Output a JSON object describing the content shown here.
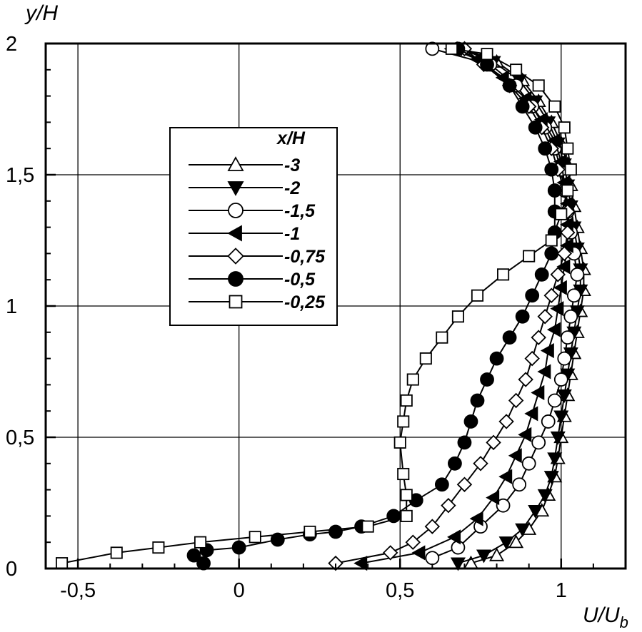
{
  "chart_data": {
    "type": "line",
    "xlabel": "U/U",
    "xlabel_sub": "b",
    "ylabel": "y/H",
    "xlim": [
      -0.6,
      1.2
    ],
    "ylim": [
      0,
      2
    ],
    "grid": true,
    "legend_title": "x/H",
    "legend_placement": "upper-left-center",
    "x_ticks": [
      -0.5,
      0,
      0.5,
      1
    ],
    "x_tick_labels": [
      "-0,5",
      "0",
      "0,5",
      "1"
    ],
    "y_ticks": [
      0,
      0.5,
      1,
      1.5,
      2
    ],
    "y_tick_labels": [
      "0",
      "0,5",
      "1",
      "1,5",
      "2"
    ],
    "series": [
      {
        "name": "-3",
        "marker": "triangle-up",
        "filled": false,
        "points": [
          [
            0.72,
            0.02
          ],
          [
            0.8,
            0.05
          ],
          [
            0.86,
            0.1
          ],
          [
            0.9,
            0.15
          ],
          [
            0.94,
            0.22
          ],
          [
            0.96,
            0.28
          ],
          [
            0.98,
            0.35
          ],
          [
            0.99,
            0.42
          ],
          [
            1.0,
            0.5
          ],
          [
            1.01,
            0.58
          ],
          [
            1.02,
            0.66
          ],
          [
            1.03,
            0.74
          ],
          [
            1.04,
            0.82
          ],
          [
            1.05,
            0.9
          ],
          [
            1.06,
            0.98
          ],
          [
            1.07,
            1.06
          ],
          [
            1.07,
            1.14
          ],
          [
            1.06,
            1.22
          ],
          [
            1.05,
            1.3
          ],
          [
            1.04,
            1.38
          ],
          [
            1.03,
            1.46
          ],
          [
            1.02,
            1.54
          ],
          [
            1.0,
            1.62
          ],
          [
            0.97,
            1.7
          ],
          [
            0.93,
            1.78
          ],
          [
            0.88,
            1.86
          ],
          [
            0.8,
            1.93
          ],
          [
            0.7,
            1.98
          ]
        ]
      },
      {
        "name": "-2",
        "marker": "triangle-down",
        "filled": true,
        "points": [
          [
            0.68,
            0.02
          ],
          [
            0.76,
            0.05
          ],
          [
            0.83,
            0.1
          ],
          [
            0.88,
            0.15
          ],
          [
            0.92,
            0.22
          ],
          [
            0.95,
            0.28
          ],
          [
            0.97,
            0.35
          ],
          [
            0.98,
            0.42
          ],
          [
            0.99,
            0.5
          ],
          [
            1.0,
            0.58
          ],
          [
            1.01,
            0.66
          ],
          [
            1.02,
            0.74
          ],
          [
            1.03,
            0.82
          ],
          [
            1.04,
            0.9
          ],
          [
            1.05,
            0.98
          ],
          [
            1.06,
            1.06
          ],
          [
            1.06,
            1.14
          ],
          [
            1.05,
            1.22
          ],
          [
            1.04,
            1.3
          ],
          [
            1.03,
            1.38
          ],
          [
            1.02,
            1.46
          ],
          [
            1.01,
            1.54
          ],
          [
            0.99,
            1.62
          ],
          [
            0.96,
            1.7
          ],
          [
            0.92,
            1.78
          ],
          [
            0.87,
            1.86
          ],
          [
            0.79,
            1.93
          ],
          [
            0.69,
            1.98
          ]
        ]
      },
      {
        "name": "-1,5",
        "marker": "circle",
        "filled": false,
        "points": [
          [
            0.6,
            0.04
          ],
          [
            0.68,
            0.08
          ],
          [
            0.75,
            0.16
          ],
          [
            0.82,
            0.24
          ],
          [
            0.87,
            0.32
          ],
          [
            0.9,
            0.4
          ],
          [
            0.93,
            0.48
          ],
          [
            0.96,
            0.56
          ],
          [
            0.98,
            0.64
          ],
          [
            1.0,
            0.72
          ],
          [
            1.01,
            0.8
          ],
          [
            1.02,
            0.88
          ],
          [
            1.03,
            0.96
          ],
          [
            1.04,
            1.04
          ],
          [
            1.05,
            1.12
          ],
          [
            1.04,
            1.2
          ],
          [
            1.03,
            1.28
          ],
          [
            1.02,
            1.36
          ],
          [
            1.01,
            1.44
          ],
          [
            1.0,
            1.52
          ],
          [
            0.98,
            1.6
          ],
          [
            0.95,
            1.68
          ],
          [
            0.91,
            1.76
          ],
          [
            0.86,
            1.84
          ],
          [
            0.78,
            1.92
          ],
          [
            0.6,
            1.98
          ]
        ]
      },
      {
        "name": "-1",
        "marker": "triangle-left",
        "filled": true,
        "points": [
          [
            0.38,
            0.02
          ],
          [
            0.56,
            0.06
          ],
          [
            0.67,
            0.12
          ],
          [
            0.74,
            0.19
          ],
          [
            0.79,
            0.27
          ],
          [
            0.83,
            0.35
          ],
          [
            0.86,
            0.43
          ],
          [
            0.89,
            0.51
          ],
          [
            0.91,
            0.59
          ],
          [
            0.93,
            0.67
          ],
          [
            0.95,
            0.75
          ],
          [
            0.96,
            0.83
          ],
          [
            0.98,
            0.91
          ],
          [
            0.99,
            0.99
          ],
          [
            1.0,
            1.07
          ],
          [
            1.01,
            1.15
          ],
          [
            1.02,
            1.23
          ],
          [
            1.02,
            1.31
          ],
          [
            1.02,
            1.39
          ],
          [
            1.01,
            1.47
          ],
          [
            1.0,
            1.55
          ],
          [
            0.98,
            1.63
          ],
          [
            0.94,
            1.71
          ],
          [
            0.89,
            1.79
          ],
          [
            0.82,
            1.87
          ],
          [
            0.74,
            1.94
          ],
          [
            0.66,
            1.98
          ]
        ]
      },
      {
        "name": "-0,75",
        "marker": "diamond",
        "filled": false,
        "points": [
          [
            0.3,
            0.02
          ],
          [
            0.47,
            0.06
          ],
          [
            0.54,
            0.1
          ],
          [
            0.6,
            0.16
          ],
          [
            0.65,
            0.24
          ],
          [
            0.7,
            0.32
          ],
          [
            0.75,
            0.4
          ],
          [
            0.79,
            0.48
          ],
          [
            0.83,
            0.56
          ],
          [
            0.86,
            0.64
          ],
          [
            0.89,
            0.72
          ],
          [
            0.91,
            0.8
          ],
          [
            0.93,
            0.88
          ],
          [
            0.95,
            0.96
          ],
          [
            0.97,
            1.04
          ],
          [
            0.99,
            1.12
          ],
          [
            1.01,
            1.2
          ],
          [
            1.02,
            1.28
          ],
          [
            1.02,
            1.36
          ],
          [
            1.01,
            1.44
          ],
          [
            0.99,
            1.52
          ],
          [
            0.97,
            1.6
          ],
          [
            0.94,
            1.68
          ],
          [
            0.9,
            1.76
          ],
          [
            0.84,
            1.84
          ],
          [
            0.76,
            1.92
          ],
          [
            0.7,
            1.98
          ]
        ]
      },
      {
        "name": "-0,5",
        "marker": "circle",
        "filled": true,
        "points": [
          [
            -0.11,
            0.02
          ],
          [
            -0.14,
            0.05
          ],
          [
            -0.1,
            0.07
          ],
          [
            0.0,
            0.08
          ],
          [
            0.12,
            0.11
          ],
          [
            0.22,
            0.13
          ],
          [
            0.3,
            0.14
          ],
          [
            0.38,
            0.16
          ],
          [
            0.48,
            0.2
          ],
          [
            0.55,
            0.26
          ],
          [
            0.63,
            0.32
          ],
          [
            0.67,
            0.4
          ],
          [
            0.7,
            0.48
          ],
          [
            0.72,
            0.56
          ],
          [
            0.74,
            0.64
          ],
          [
            0.77,
            0.72
          ],
          [
            0.8,
            0.8
          ],
          [
            0.84,
            0.88
          ],
          [
            0.88,
            0.96
          ],
          [
            0.91,
            1.04
          ],
          [
            0.94,
            1.12
          ],
          [
            0.97,
            1.2
          ],
          [
            0.98,
            1.28
          ],
          [
            0.98,
            1.36
          ],
          [
            0.98,
            1.44
          ],
          [
            0.97,
            1.52
          ],
          [
            0.95,
            1.6
          ],
          [
            0.92,
            1.68
          ],
          [
            0.88,
            1.76
          ],
          [
            0.84,
            1.84
          ],
          [
            0.77,
            1.92
          ],
          [
            0.68,
            1.98
          ]
        ]
      },
      {
        "name": "-0,25",
        "marker": "square",
        "filled": false,
        "points": [
          [
            -0.55,
            0.02
          ],
          [
            -0.38,
            0.06
          ],
          [
            -0.25,
            0.08
          ],
          [
            -0.12,
            0.1
          ],
          [
            0.05,
            0.12
          ],
          [
            0.22,
            0.14
          ],
          [
            0.4,
            0.16
          ],
          [
            0.52,
            0.2
          ],
          [
            0.52,
            0.28
          ],
          [
            0.51,
            0.36
          ],
          [
            0.5,
            0.48
          ],
          [
            0.51,
            0.56
          ],
          [
            0.52,
            0.64
          ],
          [
            0.54,
            0.72
          ],
          [
            0.58,
            0.8
          ],
          [
            0.63,
            0.88
          ],
          [
            0.68,
            0.96
          ],
          [
            0.74,
            1.04
          ],
          [
            0.82,
            1.12
          ],
          [
            0.9,
            1.19
          ],
          [
            0.97,
            1.25
          ],
          [
            1.0,
            1.35
          ],
          [
            1.02,
            1.44
          ],
          [
            1.03,
            1.52
          ],
          [
            1.02,
            1.6
          ],
          [
            1.01,
            1.68
          ],
          [
            0.98,
            1.76
          ],
          [
            0.93,
            1.84
          ],
          [
            0.86,
            1.9
          ],
          [
            0.77,
            1.96
          ],
          [
            0.66,
            1.98
          ]
        ]
      }
    ]
  }
}
